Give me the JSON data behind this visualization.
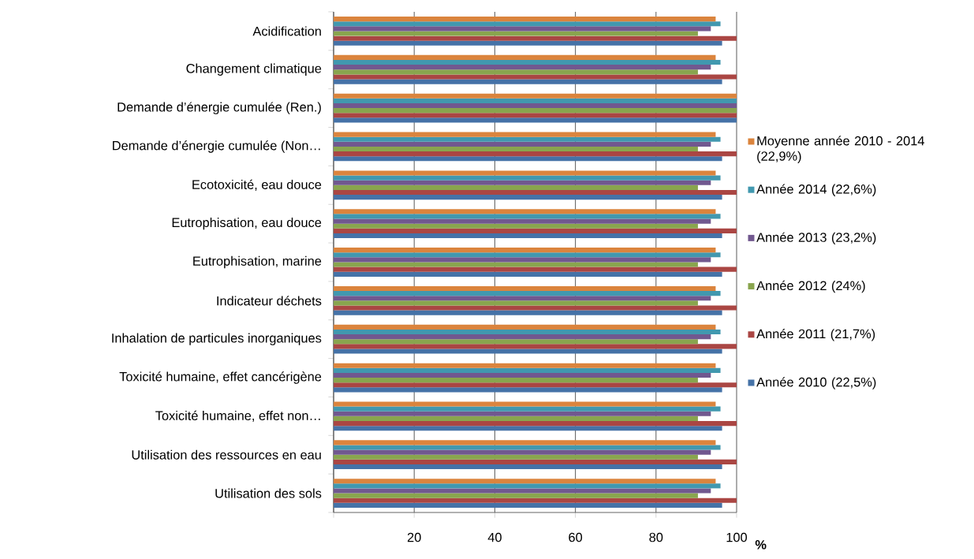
{
  "chart_data": {
    "type": "bar",
    "orientation": "horizontal",
    "xlabel": "%",
    "categories": [
      "Acidification",
      "Changement climatique",
      "Demande d’énergie cumulée (Ren.)",
      "Demande d’énergie cumulée (Non…",
      "Ecotoxicité, eau douce",
      "Eutrophisation, eau douce",
      "Eutrophisation, marine",
      "Indicateur déchets",
      "Inhalation de particules inorganiques",
      "Toxicité humaine, effet cancérigène",
      "Toxicité humaine, effet non…",
      "Utilisation des ressources en eau",
      "Utilisation des sols"
    ],
    "series": [
      {
        "name": "Année 2010 (22,5%)",
        "color": "#4572a7",
        "values": [
          96.4,
          96.4,
          100,
          96.4,
          96.4,
          96.4,
          96.4,
          96.4,
          96.4,
          96.4,
          96.4,
          96.4,
          96.4
        ]
      },
      {
        "name": "Année 2011 (21,7%)",
        "color": "#aa4643",
        "values": [
          100,
          100,
          100,
          100,
          100,
          100,
          100,
          100,
          100,
          100,
          100,
          100,
          100
        ]
      },
      {
        "name": "Année 2012 (24%)",
        "color": "#89a54e",
        "values": [
          90.4,
          90.4,
          100,
          90.4,
          90.4,
          90.4,
          90.4,
          90.4,
          90.4,
          90.4,
          90.4,
          90.4,
          90.4
        ]
      },
      {
        "name": "Année 2013 (23,2%)",
        "color": "#71588f",
        "values": [
          93.6,
          93.6,
          100,
          93.6,
          93.6,
          93.6,
          93.6,
          93.6,
          93.6,
          93.6,
          93.6,
          93.6,
          93.6
        ]
      },
      {
        "name": "Année 2014 (22,6%)",
        "color": "#4198af",
        "values": [
          96.0,
          96.0,
          100,
          96.0,
          96.0,
          96.0,
          96.0,
          96.0,
          96.0,
          96.0,
          96.0,
          96.0,
          96.0
        ]
      },
      {
        "name": "Moyenne année 2010 - 2014 (22,9%)",
        "color": "#db843d",
        "values": [
          94.8,
          94.8,
          100,
          94.8,
          94.8,
          94.8,
          94.8,
          94.8,
          94.8,
          94.8,
          94.8,
          94.8,
          94.8
        ]
      }
    ],
    "xlim": [
      0,
      100
    ],
    "xticks": [
      {
        "value": 0,
        "label": null
      },
      20,
      40,
      60,
      80,
      100
    ],
    "grid": "x",
    "legend": "right"
  }
}
